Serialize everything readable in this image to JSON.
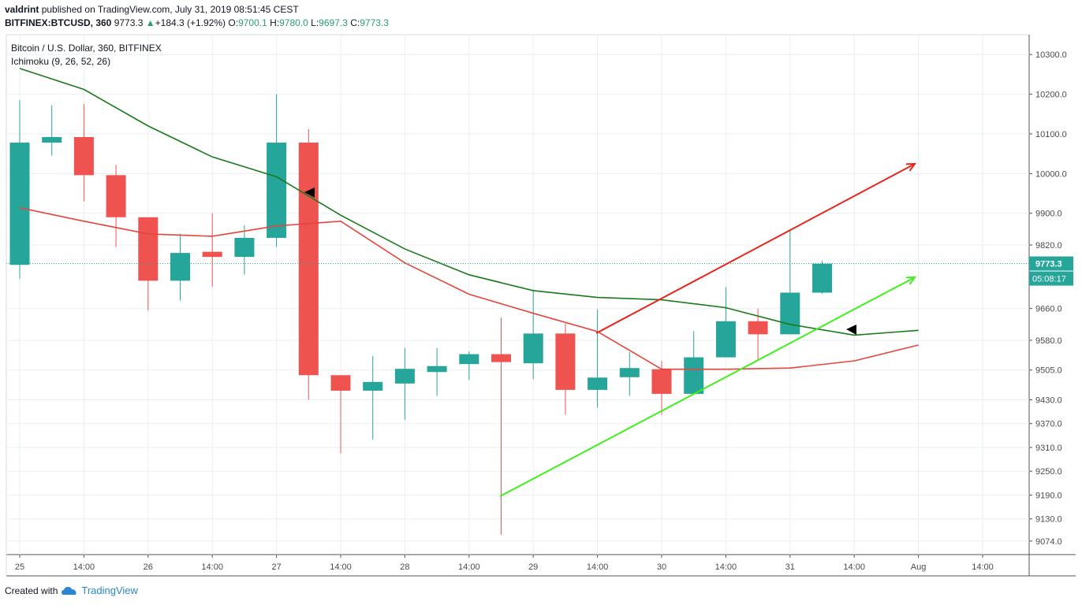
{
  "header": {
    "user": "valdrint",
    "published": "published on TradingView.com, July 31, 2019 08:51:45 CEST",
    "symbol": "BITFINEX:BTCUSD, 360",
    "last": "9773.3",
    "change": "+184.3 (+1.92%)",
    "o_label": "O:",
    "o_val": "9700.1",
    "h_label": "H:",
    "h_val": "9780.0",
    "l_label": "L:",
    "l_val": "9697.3",
    "c_label": "C:",
    "c_val": "9773.3"
  },
  "legend": {
    "title": "Bitcoin / U.S. Dollar, 360, BITFINEX",
    "indicator": "Ichimoku (9, 26, 52, 26)"
  },
  "footer": {
    "created_with": "Created with",
    "brand": "TradingView"
  },
  "colors": {
    "up": "#26a69a",
    "down": "#ef5350",
    "base_line": "#1a7a1a",
    "conv_line": "#e5453a",
    "arrow_red": "#e8261c",
    "arrow_green": "#3ef01c",
    "grid": "#e9eff3",
    "axis_text": "#4a4a4a",
    "price_label_bg": "#26a69a",
    "price_dotted": "#26a69a"
  },
  "chart_data": {
    "type": "candlestick",
    "interval": "360",
    "ylim": [
      9040,
      10350
    ],
    "yticks": [
      "9074.0",
      "9130.0",
      "9190.0",
      "9250.0",
      "9310.0",
      "9370.0",
      "9430.0",
      "9505.0",
      "9580.0",
      "9660.0",
      "9820.0",
      "9900.0",
      "10000.0",
      "10100.0",
      "10200.0",
      "10300.0"
    ],
    "xticks": [
      "25",
      "14:00",
      "26",
      "14:00",
      "27",
      "14:00",
      "28",
      "14:00",
      "29",
      "14:00",
      "30",
      "14:00",
      "31",
      "14:00",
      "Aug",
      "14:00"
    ],
    "grid": true,
    "last_price": "9773.3",
    "countdown": "05:08:17",
    "candles": [
      {
        "o": 9770,
        "h": 10185,
        "l": 9735,
        "c": 10078
      },
      {
        "o": 10078,
        "h": 10172,
        "l": 10045,
        "c": 10092
      },
      {
        "o": 10092,
        "h": 10175,
        "l": 9930,
        "c": 9996
      },
      {
        "o": 9996,
        "h": 10022,
        "l": 9815,
        "c": 9890
      },
      {
        "o": 9890,
        "h": 9890,
        "l": 9655,
        "c": 9730
      },
      {
        "o": 9730,
        "h": 9848,
        "l": 9680,
        "c": 9800
      },
      {
        "o": 9803,
        "h": 9900,
        "l": 9715,
        "c": 9790
      },
      {
        "o": 9790,
        "h": 9870,
        "l": 9745,
        "c": 9838
      },
      {
        "o": 9838,
        "h": 10200,
        "l": 9815,
        "c": 10078
      },
      {
        "o": 10078,
        "h": 10112,
        "l": 9430,
        "c": 9492
      },
      {
        "o": 9492,
        "h": 9492,
        "l": 9295,
        "c": 9453
      },
      {
        "o": 9453,
        "h": 9540,
        "l": 9330,
        "c": 9475
      },
      {
        "o": 9471,
        "h": 9560,
        "l": 9380,
        "c": 9508
      },
      {
        "o": 9500,
        "h": 9560,
        "l": 9440,
        "c": 9515
      },
      {
        "o": 9520,
        "h": 9552,
        "l": 9480,
        "c": 9545
      },
      {
        "o": 9545,
        "h": 9637,
        "l": 9090,
        "c": 9525
      },
      {
        "o": 9522,
        "h": 9708,
        "l": 9482,
        "c": 9597
      },
      {
        "o": 9597,
        "h": 9622,
        "l": 9392,
        "c": 9455
      },
      {
        "o": 9455,
        "h": 9658,
        "l": 9410,
        "c": 9486
      },
      {
        "o": 9487,
        "h": 9550,
        "l": 9440,
        "c": 9510
      },
      {
        "o": 9507,
        "h": 9528,
        "l": 9392,
        "c": 9445
      },
      {
        "o": 9445,
        "h": 9603,
        "l": 9445,
        "c": 9537
      },
      {
        "o": 9537,
        "h": 9714,
        "l": 9537,
        "c": 9628
      },
      {
        "o": 9628,
        "h": 9660,
        "l": 9530,
        "c": 9595
      },
      {
        "o": 9595,
        "h": 9860,
        "l": 9595,
        "c": 9700
      },
      {
        "o": 9700,
        "h": 9780,
        "l": 9697,
        "c": 9773
      }
    ],
    "series": [
      {
        "name": "Ichimoku base line",
        "values": [
          10265,
          10212,
          10120,
          10042,
          9992,
          9895,
          9810,
          9745,
          9705,
          9688,
          9682,
          9662,
          9620,
          9593,
          9605
        ]
      },
      {
        "name": "Ichimoku conversion line",
        "values": [
          9914,
          9880,
          9848,
          9842,
          9868,
          9880,
          9775,
          9696,
          9648,
          9602,
          9507,
          9507,
          9510,
          9528,
          9568
        ]
      }
    ]
  }
}
